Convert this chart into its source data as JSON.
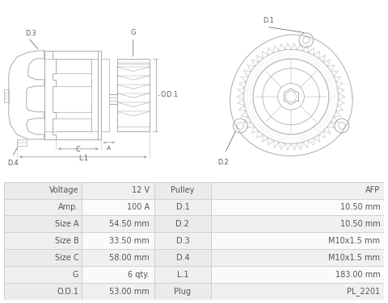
{
  "bg_color": "#ffffff",
  "table_bg_label": "#e8e8e8",
  "table_bg_value": "#f5f5f5",
  "table_bg_white": "#ffffff",
  "table_border_color": "#cccccc",
  "table_text_color": "#555555",
  "diagram_line_color": "#aaaaaa",
  "dim_line_color": "#999999",
  "label_color": "#555555",
  "table_rows": [
    [
      "Voltage",
      "12 V",
      "Pulley",
      "AFP"
    ],
    [
      "Amp.",
      "100 A",
      "D.1",
      "10.50 mm"
    ],
    [
      "Size A",
      "54.50 mm",
      "D.2",
      "10.50 mm"
    ],
    [
      "Size B",
      "33.50 mm",
      "D.3",
      "M10x1.5 mm"
    ],
    [
      "Size C",
      "58.00 mm",
      "D.4",
      "M10x1.5 mm"
    ],
    [
      "G",
      "6 qty.",
      "L.1",
      "183.00 mm"
    ],
    [
      "O.D.1",
      "53.00 mm",
      "Plug",
      "PL_2201"
    ]
  ],
  "font_size_table": 7.0,
  "label_font_size": 5.8,
  "diagram_lw": 0.7
}
